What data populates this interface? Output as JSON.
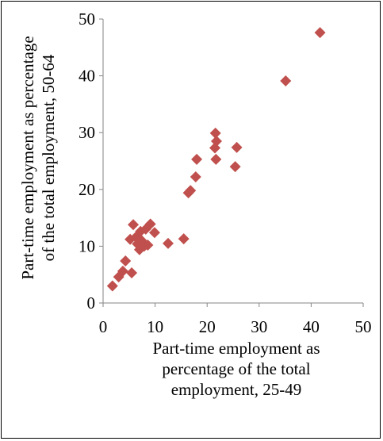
{
  "chart_data": {
    "type": "scatter",
    "xlabel": [
      "Part-time employment as",
      "percentage of the total",
      "employment, 25-49"
    ],
    "ylabel": [
      "Part-time employment as percentage",
      "of the total employment, 50-64"
    ],
    "xlim": [
      0,
      50
    ],
    "ylim": [
      0,
      50
    ],
    "xticks": [
      "0",
      "10",
      "20",
      "30",
      "40",
      "50"
    ],
    "yticks": [
      "0",
      "10",
      "20",
      "30",
      "40",
      "50"
    ],
    "grid": false,
    "marker": "diamond",
    "marker_color": "#c0504d",
    "points": [
      {
        "x": 1.8,
        "y": 3.0
      },
      {
        "x": 3.0,
        "y": 4.6
      },
      {
        "x": 3.8,
        "y": 5.6
      },
      {
        "x": 4.3,
        "y": 7.4
      },
      {
        "x": 5.5,
        "y": 5.3
      },
      {
        "x": 5.2,
        "y": 11.2
      },
      {
        "x": 5.8,
        "y": 13.8
      },
      {
        "x": 6.3,
        "y": 11.6
      },
      {
        "x": 6.6,
        "y": 10.4
      },
      {
        "x": 7.0,
        "y": 9.4
      },
      {
        "x": 7.2,
        "y": 12.6
      },
      {
        "x": 7.4,
        "y": 11.0
      },
      {
        "x": 7.9,
        "y": 10.0
      },
      {
        "x": 8.2,
        "y": 13.0
      },
      {
        "x": 8.6,
        "y": 10.2
      },
      {
        "x": 9.1,
        "y": 13.9
      },
      {
        "x": 9.9,
        "y": 12.4
      },
      {
        "x": 12.5,
        "y": 10.5
      },
      {
        "x": 15.5,
        "y": 11.3
      },
      {
        "x": 16.4,
        "y": 19.4
      },
      {
        "x": 16.8,
        "y": 19.8
      },
      {
        "x": 17.8,
        "y": 22.2
      },
      {
        "x": 18.0,
        "y": 25.3
      },
      {
        "x": 21.5,
        "y": 27.3
      },
      {
        "x": 21.6,
        "y": 29.9
      },
      {
        "x": 21.8,
        "y": 28.5
      },
      {
        "x": 21.7,
        "y": 25.3
      },
      {
        "x": 25.4,
        "y": 24.0
      },
      {
        "x": 25.7,
        "y": 27.4
      },
      {
        "x": 35.1,
        "y": 39.1
      },
      {
        "x": 41.7,
        "y": 47.6
      }
    ]
  }
}
